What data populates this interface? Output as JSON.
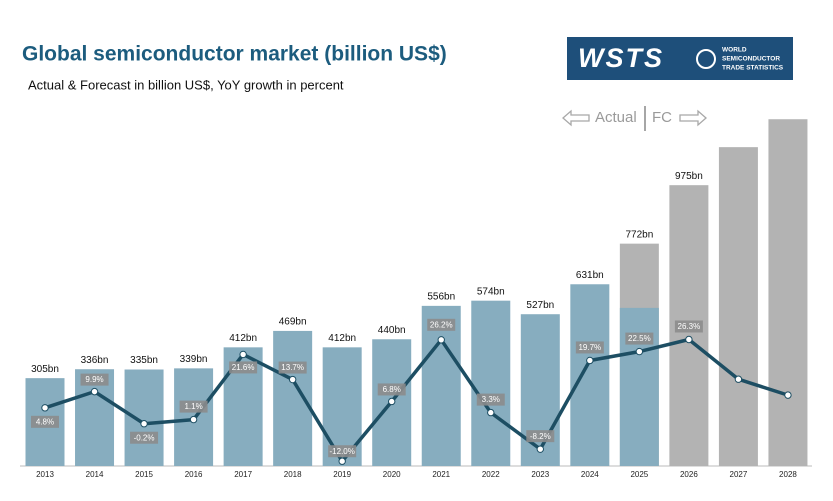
{
  "chart_data": {
    "type": "bar",
    "title": "Global semiconductor market (billion US$)",
    "subtitle": "Actual & Forecast in billion US$, YoY growth in percent",
    "logo": {
      "mark": "WSTS",
      "lines": [
        "WORLD",
        "SEMICONDUCTOR",
        "TRADE STATISTICS"
      ]
    },
    "period_labels": {
      "actual": "Actual",
      "forecast": "FC"
    },
    "categories": [
      "2013",
      "2014",
      "2015",
      "2016",
      "2017",
      "2018",
      "2019",
      "2020",
      "2021",
      "2022",
      "2023",
      "2024",
      "2025",
      "2026",
      "2027",
      "2028"
    ],
    "values": [
      305,
      336,
      335,
      339,
      412,
      469,
      412,
      440,
      556,
      574,
      527,
      631,
      772,
      975,
      1107,
      1204
    ],
    "value_labels": [
      "305bn",
      "336bn",
      "335bn",
      "339bn",
      "412bn",
      "469bn",
      "412bn",
      "440bn",
      "556bn",
      "574bn",
      "527bn",
      "631bn",
      "772bn",
      "975bn",
      null,
      null
    ],
    "colors": [
      "#87adbf",
      "#87adbf",
      "#87adbf",
      "#87adbf",
      "#87adbf",
      "#87adbf",
      "#87adbf",
      "#87adbf",
      "#87adbf",
      "#87adbf",
      "#87adbf",
      "#87adbf",
      "#b3b3b3",
      "#b3b3b3",
      "#b3b3b3",
      "#b3b3b3"
    ],
    "actual_portion": {
      "color": "#87adbf",
      "values": [
        null,
        null,
        null,
        null,
        null,
        null,
        null,
        null,
        null,
        null,
        null,
        null,
        549,
        null,
        null,
        null
      ]
    },
    "ylim": [
      0,
      1236
    ],
    "growth": {
      "type": "line",
      "color": "#1d4e63",
      "values": [
        4.8,
        9.9,
        -0.2,
        1.1,
        21.6,
        13.7,
        -12.0,
        6.8,
        26.2,
        3.3,
        -8.2,
        19.7,
        22.5,
        26.3,
        13.8,
        8.8
      ],
      "value_labels": [
        "4.8%",
        "9.9%",
        "-0.2%",
        "1.1%",
        "21.6%",
        "13.7%",
        "-12.0%",
        "6.8%",
        "26.2%",
        "3.3%",
        "-8.2%",
        "19.7%",
        "22.5%",
        "26.3%",
        null,
        null
      ],
      "y2lim": [
        -13.5,
        98.5
      ]
    }
  }
}
